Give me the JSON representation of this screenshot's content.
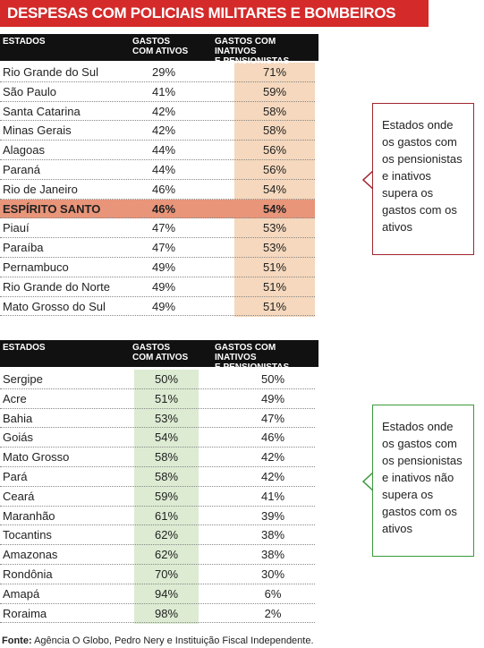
{
  "title": "DESPESAS COM POLICIAIS MILITARES E BOMBEIROS",
  "tables": [
    {
      "header": {
        "states": "ESTADOS",
        "active": [
          "GASTOS",
          "COM ATIVOS"
        ],
        "inactive": [
          "GASTOS COM INATIVOS",
          "E PENSIONISTAS"
        ]
      },
      "rows": [
        [
          "Rio Grande do Sul",
          "29%",
          "71%"
        ],
        [
          "São Paulo",
          "41%",
          "59%"
        ],
        [
          "Santa Catarina",
          "42%",
          "58%"
        ],
        [
          "Minas Gerais",
          "42%",
          "58%"
        ],
        [
          "Alagoas",
          "44%",
          "56%"
        ],
        [
          "Paraná",
          "44%",
          "56%"
        ],
        [
          "Rio de Janeiro",
          "46%",
          "54%"
        ],
        [
          "ESPÍRITO SANTO",
          "46%",
          "54%"
        ],
        [
          "Piauí",
          "47%",
          "53%"
        ],
        [
          "Paraíba",
          "47%",
          "53%"
        ],
        [
          "Pernambuco",
          "49%",
          "51%"
        ],
        [
          "Rio Grande do Norte",
          "49%",
          "51%"
        ],
        [
          "Mato Grosso do Sul",
          "49%",
          "51%"
        ]
      ]
    },
    {
      "header": {
        "states": "ESTADOS",
        "active": [
          "GASTOS",
          "COM ATIVOS"
        ],
        "inactive": [
          "GASTOS COM INATIVOS",
          "E PENSIONISTAS"
        ]
      },
      "rows": [
        [
          "Sergipe",
          "50%",
          "50%"
        ],
        [
          "Acre",
          "51%",
          "49%"
        ],
        [
          "Bahia",
          "53%",
          "47%"
        ],
        [
          "Goiás",
          "54%",
          "46%"
        ],
        [
          "Mato Grosso",
          "58%",
          "42%"
        ],
        [
          "Pará",
          "58%",
          "42%"
        ],
        [
          "Ceará",
          "59%",
          "41%"
        ],
        [
          "Maranhão",
          "61%",
          "39%"
        ],
        [
          "Tocantins",
          "62%",
          "38%"
        ],
        [
          "Amazonas",
          "62%",
          "38%"
        ],
        [
          "Rondônia",
          "70%",
          "30%"
        ],
        [
          "Amapá",
          "94%",
          "6%"
        ],
        [
          "Roraima",
          "98%",
          "2%"
        ]
      ]
    }
  ],
  "callouts": [
    "Estados onde os gastos com os pensionistas e inativos supera os gastos com os ativos",
    "Estados onde os gastos com os pensionistas e inativos não supera os gastos com os ativos"
  ],
  "source": {
    "label": "Fonte:",
    "text": "Agência O Globo, Pedro Nery e Instituição Fiscal Independente."
  }
}
